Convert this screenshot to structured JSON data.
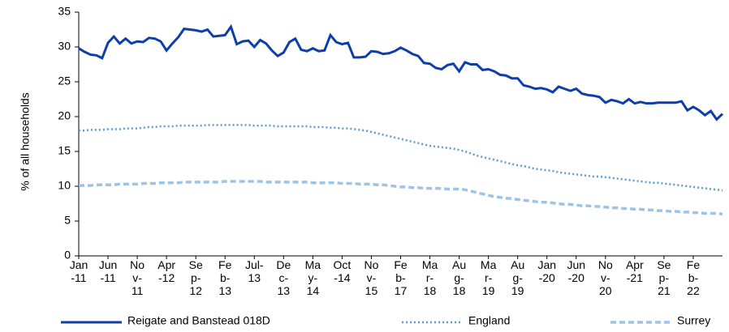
{
  "chart_data": {
    "type": "line",
    "y_label": "% of all households",
    "categories": [
      "Jan-11",
      null,
      null,
      null,
      null,
      "Jun-11",
      null,
      null,
      null,
      null,
      "Nov-11",
      null,
      null,
      null,
      null,
      "Apr-12",
      null,
      null,
      null,
      null,
      "Sep-12",
      null,
      null,
      null,
      null,
      "Feb-13",
      null,
      null,
      null,
      null,
      "Jul-13",
      null,
      null,
      null,
      null,
      "Dec-13",
      null,
      null,
      null,
      null,
      "May-14",
      null,
      null,
      null,
      null,
      "Oct-14",
      null,
      null,
      null,
      null,
      "Nov-15",
      null,
      null,
      null,
      null,
      "Feb-17",
      null,
      null,
      null,
      null,
      "Mar-18",
      null,
      null,
      null,
      null,
      "Aug-18",
      null,
      null,
      null,
      null,
      "Mar-19",
      null,
      null,
      null,
      null,
      "Aug-19",
      null,
      null,
      null,
      null,
      "Jan-20",
      null,
      null,
      null,
      null,
      "Jun-20",
      null,
      null,
      null,
      null,
      "Nov-20",
      null,
      null,
      null,
      null,
      "Apr-21",
      null,
      null,
      null,
      null,
      "Sep-21",
      null,
      null,
      null,
      null,
      "Feb-22",
      null,
      null,
      null,
      null,
      null
    ],
    "series": [
      {
        "name": "Reigate and Banstead 018D",
        "color": "#0e3fa8",
        "style": "solid",
        "values": [
          29.8,
          29.3,
          28.9,
          28.8,
          28.4,
          30.6,
          31.5,
          30.5,
          31.2,
          30.5,
          30.8,
          30.7,
          31.3,
          31.2,
          30.8,
          29.5,
          30.5,
          31.4,
          32.6,
          32.5,
          32.4,
          32.2,
          32.5,
          31.5,
          31.6,
          31.7,
          32.9,
          30.4,
          30.8,
          30.9,
          30.0,
          31.0,
          30.5,
          29.5,
          28.7,
          29.2,
          30.7,
          31.2,
          29.6,
          29.4,
          29.8,
          29.4,
          29.5,
          31.7,
          30.7,
          30.4,
          30.6,
          28.5,
          28.5,
          28.6,
          29.4,
          29.3,
          29.0,
          29.1,
          29.4,
          29.9,
          29.5,
          29.0,
          28.7,
          27.7,
          27.6,
          27.0,
          26.8,
          27.4,
          27.6,
          26.5,
          27.8,
          27.5,
          27.5,
          26.7,
          26.8,
          26.5,
          26.0,
          25.9,
          25.5,
          25.5,
          24.5,
          24.3,
          24.0,
          24.1,
          23.9,
          23.5,
          24.3,
          24.0,
          23.7,
          24.0,
          23.3,
          23.1,
          23.0,
          22.8,
          22.0,
          22.4,
          22.2,
          21.9,
          22.5,
          21.9,
          22.1,
          21.9,
          21.9,
          22.0,
          22.0,
          22.0,
          22.0,
          22.2,
          20.9,
          21.4,
          20.9,
          20.2,
          20.8,
          19.6,
          20.4
        ]
      },
      {
        "name": "England",
        "color": "#5b9bd5",
        "style": "dotted",
        "values": [
          18.0,
          18.0,
          18.1,
          18.1,
          18.1,
          18.2,
          18.2,
          18.2,
          18.3,
          18.3,
          18.3,
          18.4,
          18.5,
          18.5,
          18.6,
          18.6,
          18.6,
          18.7,
          18.7,
          18.7,
          18.7,
          18.7,
          18.8,
          18.8,
          18.8,
          18.8,
          18.8,
          18.8,
          18.8,
          18.8,
          18.7,
          18.7,
          18.7,
          18.7,
          18.6,
          18.6,
          18.6,
          18.6,
          18.6,
          18.6,
          18.5,
          18.5,
          18.5,
          18.4,
          18.4,
          18.3,
          18.3,
          18.2,
          18.1,
          18.0,
          17.8,
          17.6,
          17.4,
          17.2,
          17.0,
          16.8,
          16.6,
          16.4,
          16.2,
          16.0,
          15.8,
          15.7,
          15.6,
          15.5,
          15.4,
          15.2,
          15.0,
          14.7,
          14.4,
          14.2,
          14.0,
          13.8,
          13.6,
          13.4,
          13.2,
          13.0,
          12.9,
          12.7,
          12.5,
          12.4,
          12.3,
          12.2,
          12.0,
          11.9,
          11.8,
          11.7,
          11.6,
          11.5,
          11.4,
          11.4,
          11.3,
          11.2,
          11.1,
          11.0,
          10.9,
          10.8,
          10.7,
          10.6,
          10.5,
          10.5,
          10.4,
          10.3,
          10.2,
          10.1,
          10.0,
          9.9,
          9.8,
          9.7,
          9.6,
          9.5,
          9.4
        ]
      },
      {
        "name": "Surrey",
        "color": "#9dc3e6",
        "style": "dashed",
        "values": [
          10.1,
          10.1,
          10.1,
          10.2,
          10.2,
          10.2,
          10.2,
          10.3,
          10.3,
          10.3,
          10.3,
          10.4,
          10.4,
          10.4,
          10.5,
          10.5,
          10.5,
          10.5,
          10.6,
          10.6,
          10.6,
          10.6,
          10.6,
          10.6,
          10.6,
          10.7,
          10.7,
          10.7,
          10.7,
          10.7,
          10.7,
          10.7,
          10.6,
          10.6,
          10.6,
          10.6,
          10.6,
          10.6,
          10.6,
          10.6,
          10.5,
          10.5,
          10.5,
          10.5,
          10.5,
          10.4,
          10.4,
          10.4,
          10.3,
          10.3,
          10.3,
          10.2,
          10.2,
          10.1,
          10.0,
          9.9,
          9.9,
          9.8,
          9.8,
          9.7,
          9.7,
          9.7,
          9.7,
          9.6,
          9.6,
          9.6,
          9.5,
          9.3,
          9.1,
          8.9,
          8.7,
          8.5,
          8.4,
          8.3,
          8.2,
          8.1,
          8.0,
          7.9,
          7.8,
          7.7,
          7.7,
          7.6,
          7.5,
          7.4,
          7.4,
          7.3,
          7.2,
          7.2,
          7.1,
          7.1,
          7.0,
          6.9,
          6.9,
          6.8,
          6.8,
          6.7,
          6.7,
          6.6,
          6.6,
          6.5,
          6.5,
          6.4,
          6.4,
          6.3,
          6.3,
          6.2,
          6.2,
          6.1,
          6.1,
          6.1,
          6.0
        ]
      }
    ],
    "ylim": [
      0,
      35
    ],
    "yticks": [
      0,
      5,
      10,
      15,
      20,
      25,
      30,
      35
    ],
    "grid": false
  }
}
